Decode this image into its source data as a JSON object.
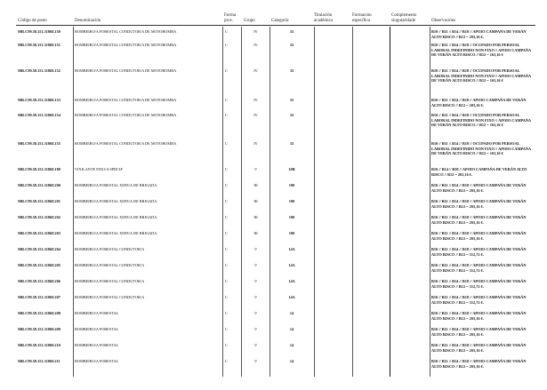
{
  "headers": {
    "codigo": "Código de posto",
    "denominacion": "Denominación",
    "forma": "Forma prov.",
    "grupo": "Grupo",
    "categoria": "Categoría",
    "titulacion": "Titulación académica",
    "formacion": "Formación específica",
    "complemento": "Complemento singularidade",
    "observacions": "Observacións"
  },
  "rows": [
    {
      "code": "MR.C99.58.151.31868.150",
      "den": "BOMBEIRO/A FORESTAL CONDUTOR/A DE MOTOBOMBA",
      "forma": "C",
      "grupo": "IV",
      "cat": "33",
      "obs": "B10 // B11 // B14 // B18 // APOIO CAMPAÑA DE VERÁN ALTO RISCO // B12 = 203,16 €."
    },
    {
      "code": "MR.C99.58.151.31868.151",
      "den": "BOMBEIRO/A FORESTAL CONDUTOR/A DE MOTOBOMBA",
      "forma": "C",
      "grupo": "IV",
      "cat": "33",
      "obs": "B10 // B11 // B14 // B18 // OCUPADO POR PERSOAL LABORAL INDEFINIDO NON FIXO // APOIO CAMPAÑA DE VERÁN ALTO RISCO // B12 = 163,16 €"
    },
    {
      "code": "MR.C99.58.151.31868.152",
      "den": "BOMBEIRO/A FORESTAL CONDUTOR/A DE MOTOBOMBA",
      "forma": "C",
      "grupo": "IV",
      "cat": "33",
      "obs": "B10 // B11 // B14 // B18 // OCUPADO POR PERSOAL LABORAL INDEFINIDO NON FIXO // APOIO CAMPAÑA DE VERÁN ALTO RISCO // B12 = 163,16 €"
    },
    {
      "code": "MR.C99.58.151.31868.153",
      "den": "BOMBEIRO/A FORESTAL CONDUTOR/A DE MOTOBOMBA",
      "forma": "C",
      "grupo": "IV",
      "cat": "33",
      "obs": "B10 // B11 // B14 // B18 // APOIO CAMPAÑA DE VERÁN ALTO RISCO // B12 = 203,16 €."
    },
    {
      "code": "MR.C99.58.151.31868.154",
      "den": "BOMBEIRO/A FORESTAL CONDUTOR/A DE MOTOBOMBA",
      "forma": "C",
      "grupo": "IV",
      "cat": "33",
      "obs": "B10 // B11 // B14 // B18 // OCUPADO POR PERSOAL LABORAL INDEFINIDO NON FIXO // APOIO CAMPAÑA DE VERÁN ALTO RISCO // B12 = 163,16 €"
    },
    {
      "code": "MR.C99.58.151.31868.155",
      "den": "BOMBEIRO/A FORESTAL CONDUTOR/A DE MOTOBOMBA",
      "forma": "C",
      "grupo": "IV",
      "cat": "33",
      "obs": "B10 // B11 // B14 // B18 // OCUPADO POR PERSOAL LABORAL INDEFINIDO NON FIXO // APOIO CAMPAÑA DE VERÁN ALTO RISCO // B12 = 163,16 €"
    },
    {
      "code": "MR.C99.58.151.31868.180",
      "den": "VIXILANTE FIXO/A SPDCIF",
      "forma": "C",
      "grupo": "V",
      "cat": "10B",
      "obs": "B10 // B14 // B18 // APOIO CAMPAÑA DE VERÁN ALTO RISCO // B12 = 203,16 €."
    },
    {
      "code": "MR.C99.58.151.31868.200",
      "den": "BOMBEIRO/A FORESTAL XEFE/A DE BRIGADA",
      "forma": "C",
      "grupo": "III",
      "cat": "100",
      "obs": "B10 // B11 // B14 // B18 // APOIO CAMPAÑA DE VERÁN ALTO RISCO // B12 = 203,16 €."
    },
    {
      "code": "MR.C99.58.151.31868.201",
      "den": "BOMBEIRO/A FORESTAL XEFE/A DE BRIGADA",
      "forma": "C",
      "grupo": "III",
      "cat": "100",
      "obs": "B10 // B11 // B14 // B18 // APOIO CAMPAÑA DE VERÁN ALTO RISCO // B12 = 203,16 €."
    },
    {
      "code": "MR.C99.58.151.31868.202",
      "den": "BOMBEIRO/A FORESTAL XEFE/A DE BRIGADA",
      "forma": "C",
      "grupo": "III",
      "cat": "100",
      "obs": "B10 // B11 // B14 // B18 // APOIO CAMPAÑA DE VERÁN ALTO RISCO // B12 = 203,16 €."
    },
    {
      "code": "MR.C99.58.151.31868.203",
      "den": "BOMBEIRO/A FORESTAL XEFE/A DE BRIGADA",
      "forma": "C",
      "grupo": "III",
      "cat": "100",
      "obs": "B10 // B11 // B14 // B18 // APOIO CAMPAÑA DE VERÁN ALTO RISCO // B12 = 203,16 €."
    },
    {
      "code": "MR.C99.58.151.31868.204",
      "den": "BOMBEIRO/A FORESTAL CONDUTOR/A",
      "forma": "C",
      "grupo": "V",
      "cat": "14A",
      "obs": "B10 // B11 // B14 // B18 // APOIO CAMPAÑA DE VERÁN ALTO RISCO // B12 = 312,72 €."
    },
    {
      "code": "MR.C99.58.151.31868.205",
      "den": "BOMBEIRO/A FORESTAL CONDUTOR/A",
      "forma": "C",
      "grupo": "V",
      "cat": "14A",
      "obs": "B10 // B11 // B14 // B18 // APOIO CAMPAÑA DE VERÁN ALTO RISCO // B12 = 312,72 €."
    },
    {
      "code": "MR.C99.58.151.31868.206",
      "den": "BOMBEIRO/A FORESTAL CONDUTOR/A",
      "forma": "C",
      "grupo": "V",
      "cat": "14A",
      "obs": "B10 // B11 // B14 // B18 // APOIO CAMPAÑA DE VERÁN ALTO RISCO // B12 = 312,72 €."
    },
    {
      "code": "MR.C99.58.151.31868.207",
      "den": "BOMBEIRO/A FORESTAL CONDUTOR/A",
      "forma": "C",
      "grupo": "V",
      "cat": "14A",
      "obs": "B10 // B11 // B14 // B18 // APOIO CAMPAÑA DE VERÁN ALTO RISCO // B12 = 312,72 €."
    },
    {
      "code": "MR.C99.58.151.31868.208",
      "den": "BOMBEIRO/A FORESTAL",
      "forma": "C",
      "grupo": "V",
      "cat": "14",
      "obs": "B10 // B11 // B14 // B18 // APOIO CAMPAÑA DE VERÁN ALTO RISCO // B12 = 203,16 €."
    },
    {
      "code": "MR.C99.58.151.31868.209",
      "den": "BOMBEIRO/A FORESTAL",
      "forma": "C",
      "grupo": "V",
      "cat": "14",
      "obs": "B10 // B11 // B14 // B18 // APOIO CAMPAÑA DE VERÁN ALTO RISCO // B12 = 203,16 €."
    },
    {
      "code": "MR.C99.58.151.31868.210",
      "den": "BOMBEIRO/A FORESTAL",
      "forma": "C",
      "grupo": "V",
      "cat": "14",
      "obs": "B10 // B11 // B14 // B18 // APOIO CAMPAÑA DE VERÁN ALTO RISCO // B12 = 203,16 €."
    },
    {
      "code": "MR.C99.58.151.31868.211",
      "den": "BOMBEIRO/A FORESTAL",
      "forma": "C",
      "grupo": "V",
      "cat": "14",
      "obs": "B10 // B11 // B14 // B18 // APOIO CAMPAÑA DE VERÁN ALTO RISCO // B12 = 203,16 €."
    }
  ]
}
